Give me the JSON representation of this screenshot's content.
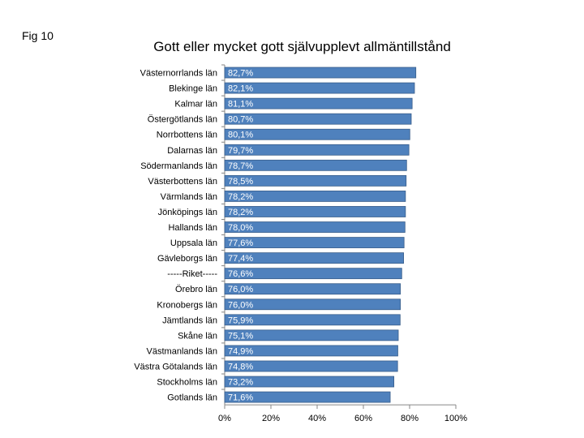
{
  "fig_label": "Fig 10",
  "chart_data": {
    "type": "bar",
    "orientation": "horizontal",
    "title": "Gott eller mycket gott självupplevt allmäntillstånd",
    "categories": [
      "Västernorrlands län",
      "Blekinge län",
      "Kalmar län",
      "Östergötlands län",
      "Norrbottens län",
      "Dalarnas län",
      "Södermanlands län",
      "Västerbottens län",
      "Värmlands län",
      "Jönköpings län",
      "Hallands län",
      "Uppsala län",
      "Gävleborgs län",
      "-----Riket-----",
      "Örebro län",
      "Kronobergs län",
      "Jämtlands län",
      "Skåne län",
      "Västmanlands län",
      "Västra Götalands län",
      "Stockholms län",
      "Gotlands län"
    ],
    "values": [
      82.7,
      82.1,
      81.1,
      80.7,
      80.1,
      79.7,
      78.7,
      78.5,
      78.2,
      78.2,
      78.0,
      77.6,
      77.4,
      76.6,
      76.0,
      76.0,
      75.9,
      75.1,
      74.9,
      74.8,
      73.2,
      71.6
    ],
    "value_labels": [
      "82,7%",
      "82,1%",
      "81,1%",
      "80,7%",
      "80,1%",
      "79,7%",
      "78,7%",
      "78,5%",
      "78,2%",
      "78,2%",
      "78,0%",
      "77,6%",
      "77,4%",
      "76,6%",
      "76,0%",
      "76,0%",
      "75,9%",
      "75,1%",
      "74,9%",
      "74,8%",
      "73,2%",
      "71,6%"
    ],
    "xlim": [
      0,
      100
    ],
    "x_ticks": [
      0,
      20,
      40,
      60,
      80,
      100
    ],
    "x_tick_labels": [
      "0%",
      "20%",
      "40%",
      "60%",
      "80%",
      "100%"
    ],
    "grid": false,
    "legend": "none",
    "bar_color": "#4f81bd",
    "bar_border_color": "#385d8a",
    "label_color": "#ffffff"
  }
}
